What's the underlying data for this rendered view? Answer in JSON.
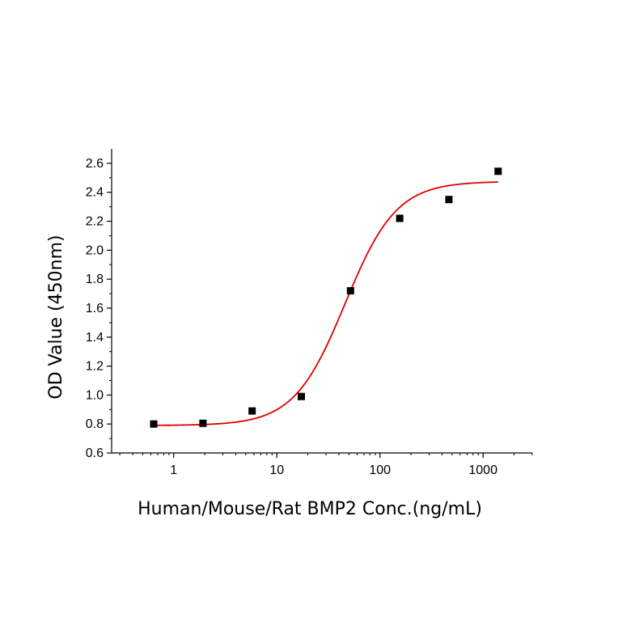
{
  "chart_data": {
    "type": "scatter",
    "xlabel": "Human/Mouse/Rat BMP2 Conc.(ng/mL)",
    "ylabel": "OD Value (450nm)",
    "x_scale": "log",
    "xlim": [
      0.25,
      3000
    ],
    "ylim": [
      0.6,
      2.7
    ],
    "x_ticks": [
      1,
      10,
      100,
      1000
    ],
    "x_tick_labels": [
      "1",
      "10",
      "100",
      "1000"
    ],
    "y_ticks": [
      0.6,
      0.8,
      1.0,
      1.2,
      1.4,
      1.6,
      1.8,
      2.0,
      2.2,
      2.4,
      2.6
    ],
    "y_tick_labels": [
      "0.6",
      "0.8",
      "1.0",
      "1.2",
      "1.4",
      "1.6",
      "1.8",
      "2.0",
      "2.2",
      "2.4",
      "2.6"
    ],
    "series": [
      {
        "marker": "square",
        "color": "#000000",
        "x": [
          0.64,
          1.92,
          5.76,
          17.28,
          51.84,
          155.52,
          466.56,
          1399.68
        ],
        "y": [
          0.8,
          0.805,
          0.89,
          0.99,
          1.72,
          2.22,
          2.35,
          2.545
        ]
      },
      {
        "fit": "4PL",
        "color": "#e00000",
        "x_range": [
          0.64,
          1399.68
        ],
        "bottom": 0.79,
        "top": 2.475,
        "ec50": 46,
        "hill": 1.75
      }
    ]
  }
}
